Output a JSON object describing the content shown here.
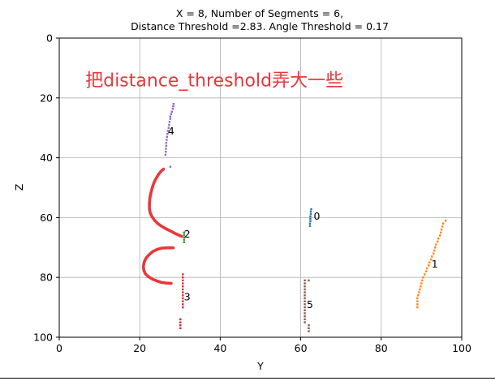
{
  "chart_data": {
    "type": "scatter",
    "title_lines": [
      "X = 8, Number of Segments = 6,",
      "Distance Threshold =2.83. Angle Threshold = 0.17"
    ],
    "xlabel": "Y",
    "ylabel": "Z",
    "xlim": [
      0,
      100
    ],
    "ylim": [
      0,
      100
    ],
    "y_inverted": true,
    "grid": true,
    "xticks": [
      0,
      20,
      40,
      60,
      80,
      100
    ],
    "yticks": [
      0,
      20,
      40,
      60,
      80,
      100
    ],
    "annotation": {
      "text": "把distance_threshold弄大一些",
      "x": 6.5,
      "y": 14,
      "color": "#e8373b"
    },
    "segments": [
      {
        "label": "0",
        "label_pos": [
          63.2,
          59.5
        ],
        "color": "#1f77b4",
        "points": [
          [
            62.6,
            57.2
          ],
          [
            62.5,
            58
          ],
          [
            62.5,
            58.8
          ],
          [
            62.4,
            59.6
          ],
          [
            62.4,
            60.4
          ],
          [
            62.4,
            61.2
          ],
          [
            62.3,
            62
          ],
          [
            62.3,
            62.8
          ]
        ]
      },
      {
        "label": "1",
        "label_pos": [
          92.5,
          75.5
        ],
        "color": "#ff7f0e",
        "points": [
          [
            96,
            61
          ],
          [
            95.4,
            62
          ],
          [
            95.2,
            63
          ],
          [
            95,
            64
          ],
          [
            94.8,
            65
          ],
          [
            94.6,
            66
          ],
          [
            94.2,
            67
          ],
          [
            94,
            68
          ],
          [
            93.6,
            69
          ],
          [
            93.4,
            70
          ],
          [
            93.2,
            71
          ],
          [
            93,
            72
          ],
          [
            92.6,
            73
          ],
          [
            92.4,
            74
          ],
          [
            92,
            75
          ],
          [
            91.8,
            76
          ],
          [
            91.4,
            77
          ],
          [
            91.2,
            78
          ],
          [
            90.8,
            79
          ],
          [
            90.4,
            80
          ],
          [
            90.2,
            81
          ],
          [
            90,
            82
          ],
          [
            89.8,
            83
          ],
          [
            89.6,
            84
          ],
          [
            89.4,
            85
          ],
          [
            89.2,
            86
          ],
          [
            89,
            87
          ],
          [
            89,
            88
          ],
          [
            89,
            89
          ],
          [
            89,
            90
          ]
        ]
      },
      {
        "label": "2",
        "label_pos": [
          31,
          65.5
        ],
        "color": "#2ca02c",
        "points": [
          [
            31,
            65
          ],
          [
            31,
            65.8
          ],
          [
            31,
            66.6
          ],
          [
            31,
            67.4
          ],
          [
            31,
            68.2
          ]
        ]
      },
      {
        "label": "3",
        "label_pos": [
          31,
          86.5
        ],
        "color": "#d62728",
        "points": [
          [
            30.7,
            79
          ],
          [
            30.7,
            80
          ],
          [
            30.7,
            81
          ],
          [
            30.7,
            82
          ],
          [
            30.7,
            83
          ],
          [
            30.7,
            84
          ],
          [
            30.7,
            85
          ],
          [
            30.7,
            86
          ],
          [
            30.7,
            87
          ],
          [
            30.7,
            88
          ],
          [
            30.7,
            89
          ],
          [
            30.7,
            90
          ],
          [
            30.1,
            94
          ],
          [
            30.1,
            95
          ],
          [
            30.1,
            96
          ],
          [
            30.1,
            97
          ]
        ]
      },
      {
        "label": "4",
        "label_pos": [
          27,
          31
        ],
        "color": "#9467bd",
        "points": [
          [
            28.4,
            22
          ],
          [
            28.3,
            22.8
          ],
          [
            28.2,
            23.6
          ],
          [
            28,
            24.6
          ],
          [
            27.8,
            25.4
          ],
          [
            27.6,
            26.2
          ],
          [
            27.6,
            27
          ],
          [
            27.4,
            28
          ],
          [
            27.3,
            29
          ],
          [
            27.2,
            30
          ],
          [
            27,
            31
          ],
          [
            26.9,
            32
          ],
          [
            26.8,
            33
          ],
          [
            26.7,
            34
          ],
          [
            26.6,
            35
          ],
          [
            26.6,
            36
          ],
          [
            26.5,
            37
          ],
          [
            26.5,
            38
          ],
          [
            26.4,
            39
          ],
          [
            27.6,
            43
          ]
        ]
      },
      {
        "label": "5",
        "label_pos": [
          61.5,
          89
        ],
        "color": "#8c564b",
        "points": [
          [
            61,
            81
          ],
          [
            61,
            82
          ],
          [
            61,
            83
          ],
          [
            61,
            84
          ],
          [
            61,
            85
          ],
          [
            61,
            86
          ],
          [
            61,
            87
          ],
          [
            61,
            88
          ],
          [
            61,
            89
          ],
          [
            61,
            90
          ],
          [
            61,
            91
          ],
          [
            61,
            92
          ],
          [
            61,
            93
          ],
          [
            61,
            94
          ],
          [
            61,
            95
          ],
          [
            62,
            81
          ],
          [
            62,
            96
          ],
          [
            62,
            97
          ],
          [
            62,
            98
          ]
        ]
      }
    ],
    "red_curves": {
      "color": "#e8373b",
      "upper": [
        [
          25.9,
          43.8
        ],
        [
          25.3,
          44.5
        ],
        [
          24.7,
          45.5
        ],
        [
          24.2,
          46.6
        ],
        [
          23.7,
          47.8
        ],
        [
          23.3,
          49.2
        ],
        [
          23,
          50.6
        ],
        [
          22.7,
          52.2
        ],
        [
          22.5,
          53.8
        ],
        [
          22.4,
          55.4
        ],
        [
          22.4,
          57
        ],
        [
          22.6,
          58.4
        ],
        [
          23,
          59.6
        ],
        [
          23.6,
          60.8
        ],
        [
          24.4,
          61.9
        ],
        [
          25.4,
          62.9
        ],
        [
          26.6,
          63.8
        ],
        [
          27.8,
          64.6
        ],
        [
          28.8,
          65.3
        ],
        [
          29.6,
          65.8
        ],
        [
          30.4,
          66.3
        ]
      ],
      "lower": [
        [
          28.3,
          70.1
        ],
        [
          27,
          70.1
        ],
        [
          25.6,
          70.2
        ],
        [
          24.4,
          70.6
        ],
        [
          23.3,
          71.3
        ],
        [
          22.4,
          72.3
        ],
        [
          21.6,
          73.5
        ],
        [
          21.1,
          74.9
        ],
        [
          20.9,
          76.3
        ],
        [
          21,
          77.6
        ],
        [
          21.4,
          78.8
        ],
        [
          22.2,
          79.8
        ],
        [
          23.2,
          80.6
        ],
        [
          24.3,
          81.2
        ],
        [
          25.4,
          81.7
        ],
        [
          26.6,
          81.9
        ],
        [
          27.8,
          82
        ]
      ]
    }
  }
}
